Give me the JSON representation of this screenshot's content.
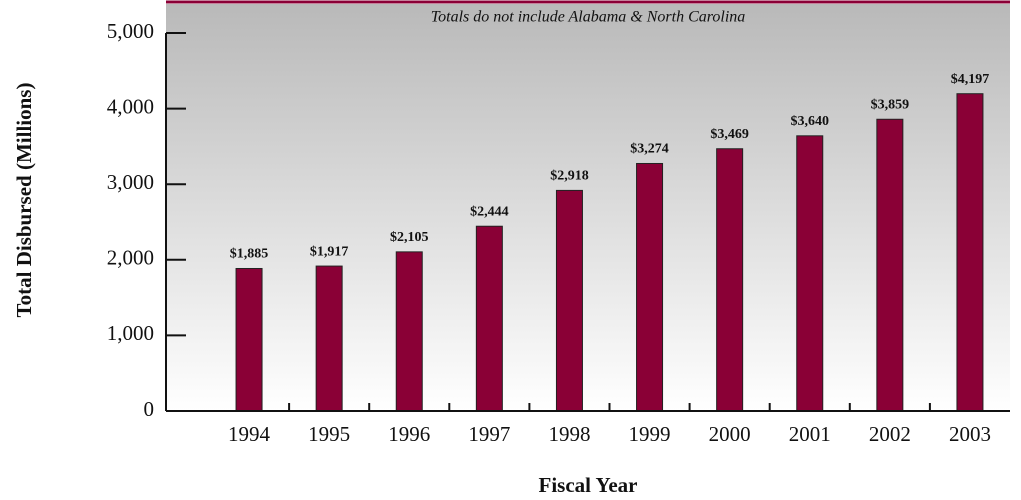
{
  "chart_data": {
    "type": "bar",
    "subtitle": "Totals do not include Alabama & North Carolina",
    "x_label": "Fiscal Year",
    "y_label": "Total Disbursed (Millions)",
    "categories": [
      "1994",
      "1995",
      "1996",
      "1997",
      "1998",
      "1999",
      "2000",
      "2001",
      "2002",
      "2003"
    ],
    "values": [
      1885,
      1917,
      2105,
      2444,
      2918,
      3274,
      3469,
      3640,
      3859,
      4197
    ],
    "value_labels": [
      "$1,885",
      "$1,917",
      "$2,105",
      "$2,444",
      "$2,918",
      "$3,274",
      "$3,469",
      "$3,640",
      "$3,859",
      "$4,197"
    ],
    "color": "#8a0036",
    "ylim": [
      0,
      5000
    ],
    "yticks": [
      0,
      {
        "value": 1000,
        "label": "1,000"
      },
      {
        "value": 2000,
        "label": "2,000"
      },
      {
        "value": 3000,
        "label": "3,000"
      },
      {
        "value": 4000,
        "label": "4,000"
      },
      {
        "value": 5000,
        "label": "5,000"
      }
    ]
  }
}
